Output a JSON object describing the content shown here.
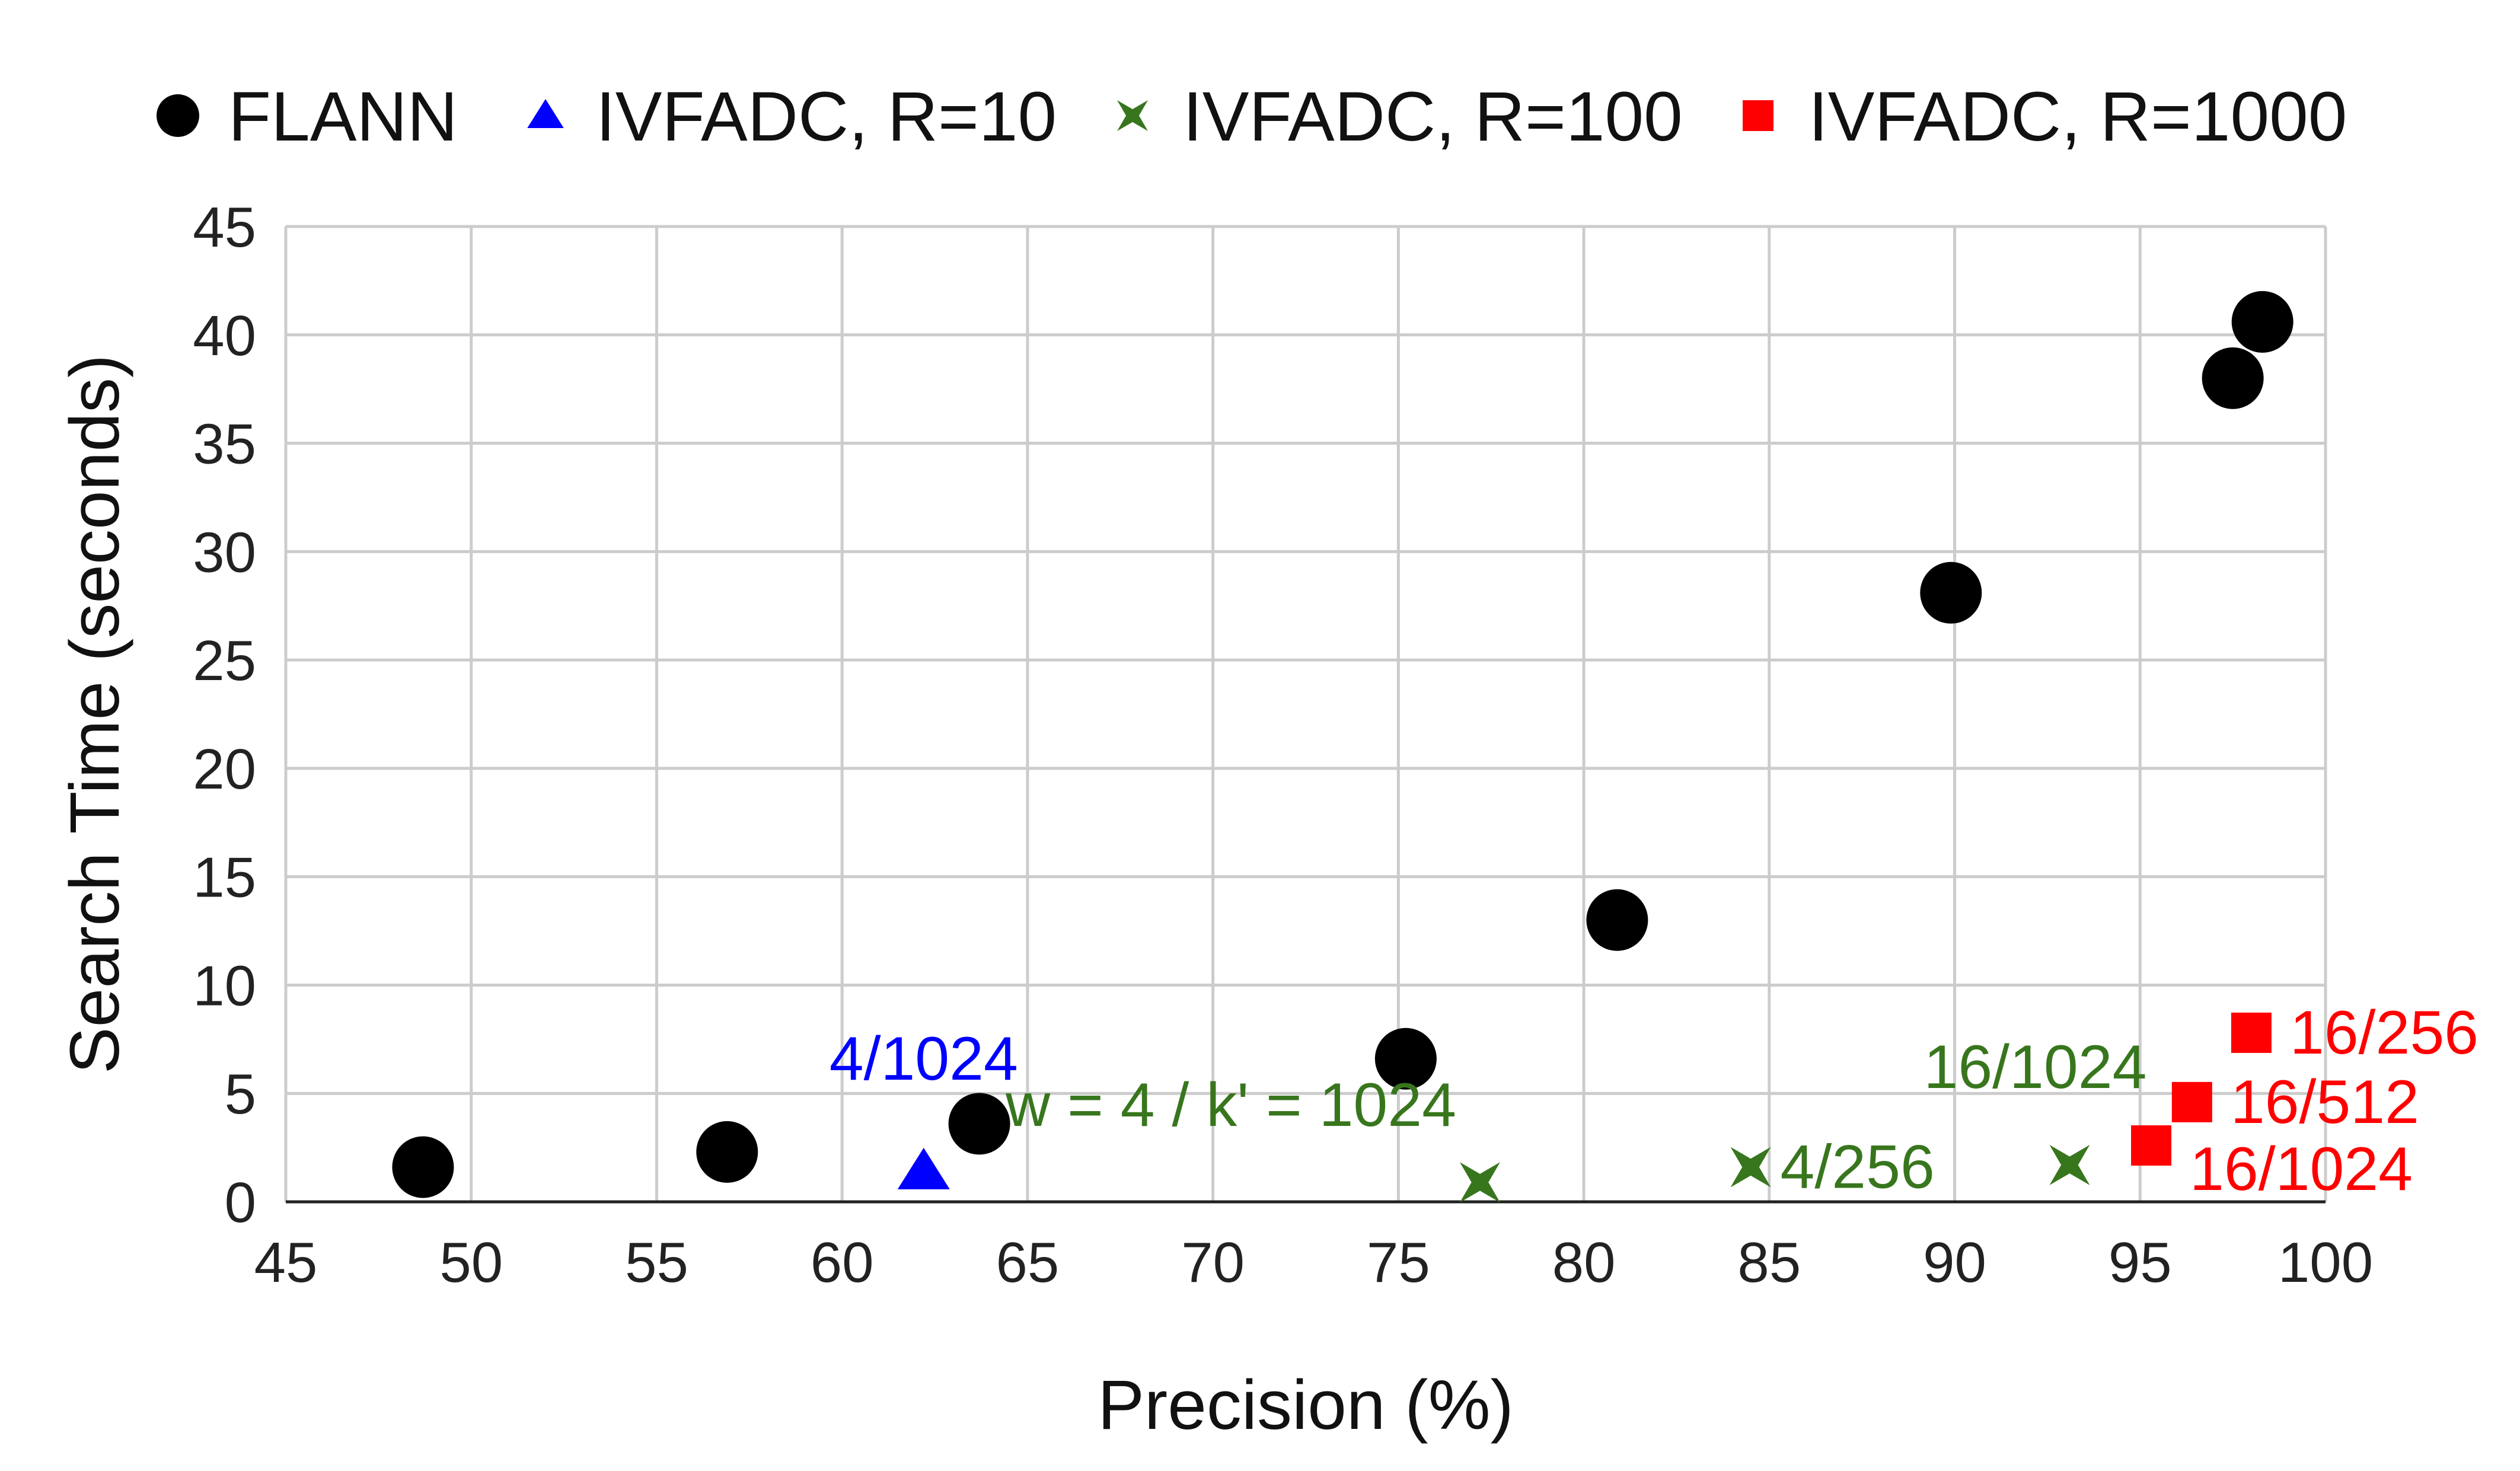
{
  "chart_data": {
    "type": "scatter",
    "xlabel": "Precision (%)",
    "ylabel": "Search Time (seconds)",
    "xlim": [
      45,
      100
    ],
    "ylim": [
      0,
      45
    ],
    "xticks": [
      45,
      50,
      55,
      60,
      65,
      70,
      75,
      80,
      85,
      90,
      95,
      100
    ],
    "yticks": [
      0,
      5,
      10,
      15,
      20,
      25,
      30,
      35,
      40,
      45
    ],
    "grid": true,
    "legend_position": "top",
    "series": [
      {
        "name": "FLANN",
        "marker": "circle",
        "color": "#000000",
        "points": [
          {
            "x": 48.7,
            "y": 1.6
          },
          {
            "x": 56.9,
            "y": 2.3
          },
          {
            "x": 63.7,
            "y": 3.6
          },
          {
            "x": 75.2,
            "y": 6.6
          },
          {
            "x": 80.9,
            "y": 13.0
          },
          {
            "x": 89.9,
            "y": 28.1
          },
          {
            "x": 97.5,
            "y": 38.0
          },
          {
            "x": 98.3,
            "y": 40.6
          }
        ]
      },
      {
        "name": "IVFADC, R=10",
        "marker": "triangle",
        "color": "#0000ff",
        "points": [
          {
            "x": 62.2,
            "y": 1.4,
            "label": "4/1024"
          }
        ]
      },
      {
        "name": "IVFADC, R=100",
        "marker": "x",
        "color": "#38761d",
        "points": [
          {
            "x": 77.2,
            "y": 0.9,
            "label": "w = 4 / k' = 1024"
          },
          {
            "x": 84.5,
            "y": 1.6,
            "label": "4/256"
          },
          {
            "x": 93.1,
            "y": 1.7,
            "label": "16/1024"
          }
        ]
      },
      {
        "name": "IVFADC, R=1000",
        "marker": "square",
        "color": "#ff0000",
        "points": [
          {
            "x": 95.3,
            "y": 2.6,
            "label": "16/1024"
          },
          {
            "x": 96.4,
            "y": 4.6,
            "label": "16/512"
          },
          {
            "x": 98.0,
            "y": 7.8,
            "label": "16/256"
          }
        ]
      }
    ]
  }
}
